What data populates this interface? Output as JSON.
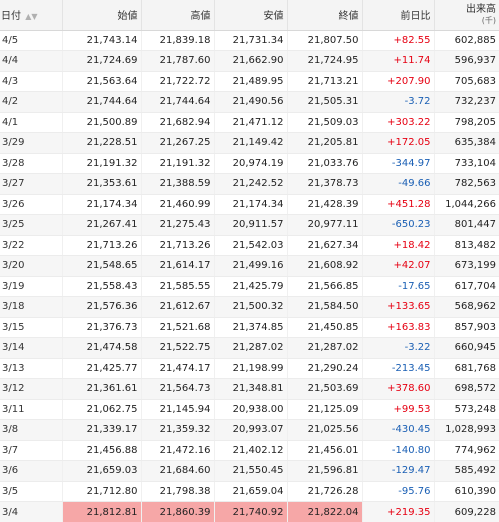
{
  "headers": {
    "date": "日付",
    "open": "始値",
    "high": "高値",
    "low": "安値",
    "close": "終値",
    "change": "前日比",
    "volume": "出来高",
    "volume_unit": "(千)"
  },
  "colors": {
    "up": "#e60012",
    "down": "#1a5fb4",
    "highlight": "#f6a7a7"
  },
  "rows": [
    {
      "date": "4/5",
      "open": "21,743.14",
      "high": "21,839.18",
      "low": "21,731.34",
      "close": "21,807.50",
      "change": "+82.55",
      "volume": "602,885"
    },
    {
      "date": "4/4",
      "open": "21,724.69",
      "high": "21,787.60",
      "low": "21,662.90",
      "close": "21,724.95",
      "change": "+11.74",
      "volume": "596,937"
    },
    {
      "date": "4/3",
      "open": "21,563.64",
      "high": "21,722.72",
      "low": "21,489.95",
      "close": "21,713.21",
      "change": "+207.90",
      "volume": "705,683"
    },
    {
      "date": "4/2",
      "open": "21,744.64",
      "high": "21,744.64",
      "low": "21,490.56",
      "close": "21,505.31",
      "change": "-3.72",
      "volume": "732,237"
    },
    {
      "date": "4/1",
      "open": "21,500.89",
      "high": "21,682.94",
      "low": "21,471.12",
      "close": "21,509.03",
      "change": "+303.22",
      "volume": "798,205"
    },
    {
      "date": "3/29",
      "open": "21,228.51",
      "high": "21,267.25",
      "low": "21,149.42",
      "close": "21,205.81",
      "change": "+172.05",
      "volume": "635,384"
    },
    {
      "date": "3/28",
      "open": "21,191.32",
      "high": "21,191.32",
      "low": "20,974.19",
      "close": "21,033.76",
      "change": "-344.97",
      "volume": "733,104"
    },
    {
      "date": "3/27",
      "open": "21,353.61",
      "high": "21,388.59",
      "low": "21,242.52",
      "close": "21,378.73",
      "change": "-49.66",
      "volume": "782,563"
    },
    {
      "date": "3/26",
      "open": "21,174.34",
      "high": "21,460.99",
      "low": "21,174.34",
      "close": "21,428.39",
      "change": "+451.28",
      "volume": "1,044,266"
    },
    {
      "date": "3/25",
      "open": "21,267.41",
      "high": "21,275.43",
      "low": "20,911.57",
      "close": "20,977.11",
      "change": "-650.23",
      "volume": "801,447"
    },
    {
      "date": "3/22",
      "open": "21,713.26",
      "high": "21,713.26",
      "low": "21,542.03",
      "close": "21,627.34",
      "change": "+18.42",
      "volume": "813,482"
    },
    {
      "date": "3/20",
      "open": "21,548.65",
      "high": "21,614.17",
      "low": "21,499.16",
      "close": "21,608.92",
      "change": "+42.07",
      "volume": "673,199"
    },
    {
      "date": "3/19",
      "open": "21,558.43",
      "high": "21,585.55",
      "low": "21,425.79",
      "close": "21,566.85",
      "change": "-17.65",
      "volume": "617,704"
    },
    {
      "date": "3/18",
      "open": "21,576.36",
      "high": "21,612.67",
      "low": "21,500.32",
      "close": "21,584.50",
      "change": "+133.65",
      "volume": "568,962"
    },
    {
      "date": "3/15",
      "open": "21,376.73",
      "high": "21,521.68",
      "low": "21,374.85",
      "close": "21,450.85",
      "change": "+163.83",
      "volume": "857,903"
    },
    {
      "date": "3/14",
      "open": "21,474.58",
      "high": "21,522.75",
      "low": "21,287.02",
      "close": "21,287.02",
      "change": "-3.22",
      "volume": "660,945"
    },
    {
      "date": "3/13",
      "open": "21,425.77",
      "high": "21,474.17",
      "low": "21,198.99",
      "close": "21,290.24",
      "change": "-213.45",
      "volume": "681,768"
    },
    {
      "date": "3/12",
      "open": "21,361.61",
      "high": "21,564.73",
      "low": "21,348.81",
      "close": "21,503.69",
      "change": "+378.60",
      "volume": "698,572"
    },
    {
      "date": "3/11",
      "open": "21,062.75",
      "high": "21,145.94",
      "low": "20,938.00",
      "close": "21,125.09",
      "change": "+99.53",
      "volume": "573,248"
    },
    {
      "date": "3/8",
      "open": "21,339.17",
      "high": "21,359.32",
      "low": "20,993.07",
      "close": "21,025.56",
      "change": "-430.45",
      "volume": "1,028,993"
    },
    {
      "date": "3/7",
      "open": "21,456.88",
      "high": "21,472.16",
      "low": "21,402.12",
      "close": "21,456.01",
      "change": "-140.80",
      "volume": "774,962"
    },
    {
      "date": "3/6",
      "open": "21,659.03",
      "high": "21,684.60",
      "low": "21,550.45",
      "close": "21,596.81",
      "change": "-129.47",
      "volume": "585,492"
    },
    {
      "date": "3/5",
      "open": "21,712.80",
      "high": "21,798.38",
      "low": "21,659.04",
      "close": "21,726.28",
      "change": "-95.76",
      "volume": "610,390"
    },
    {
      "date": "3/4",
      "open": "21,812.81",
      "high": "21,860.39",
      "low": "21,740.92",
      "close": "21,822.04",
      "change": "+219.35",
      "volume": "609,228"
    }
  ]
}
